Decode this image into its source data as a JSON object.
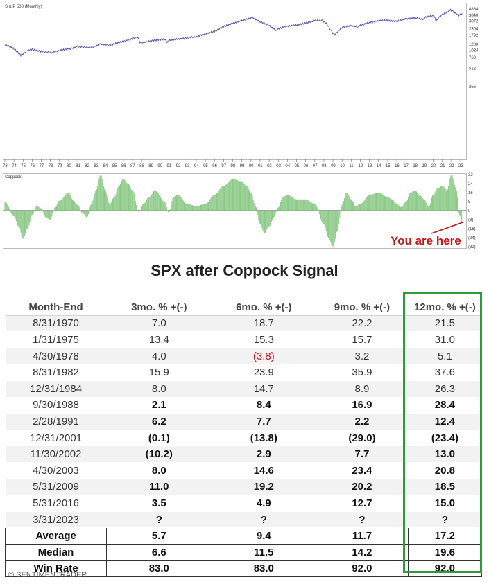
{
  "chart_data": [
    {
      "type": "line",
      "title": "S & P 500 (Monthly)",
      "scale": "log",
      "y_ticks": [
        "4864",
        "3840",
        "3072",
        "2304",
        "1792",
        "1280",
        "1024",
        "768",
        "512",
        "256"
      ],
      "y_tick_values": [
        4864,
        3840,
        3072,
        2304,
        1792,
        1280,
        1024,
        768,
        512,
        256
      ],
      "x_ticks": [
        "73",
        "74",
        "75",
        "76",
        "77",
        "78",
        "79",
        "80",
        "81",
        "82",
        "83",
        "84",
        "85",
        "86",
        "87",
        "88",
        "89",
        "90",
        "91",
        "92",
        "93",
        "94",
        "95",
        "96",
        "97",
        "98",
        "99",
        "00",
        "01",
        "02",
        "03",
        "04",
        "05",
        "06",
        "07",
        "08",
        "09",
        "10",
        "11",
        "12",
        "13",
        "14",
        "15",
        "16",
        "17",
        "18",
        "19",
        "20",
        "21",
        "22",
        "23"
      ],
      "x_range": [
        1973,
        2023.3
      ],
      "series": [
        {
          "x": [
            1973,
            1974,
            1974.75,
            1975.5,
            1976,
            1977,
            1978.2,
            1979,
            1980.2,
            1980.9,
            1982.6,
            1983.5,
            1984.5,
            1985,
            1986,
            1987.6,
            1987.8,
            1988,
            1989,
            1990.5,
            1990.8,
            1991,
            1992,
            1993,
            1994,
            1995,
            1996,
            1997,
            1998,
            1999,
            2000.2,
            2000.7,
            2001,
            2001.7,
            2002,
            2002.8,
            2003,
            2004,
            2005,
            2006,
            2007,
            2007.8,
            2008.3,
            2008.9,
            2009.2,
            2010,
            2011,
            2011.8,
            2012,
            2013,
            2014,
            2015,
            2016.1,
            2017,
            2018,
            2018.9,
            2019,
            2020.1,
            2020.3,
            2020.6,
            2021,
            2021.9,
            2022.3,
            2022.8,
            2023.2
          ],
          "y": [
            1250,
            1080,
            840,
            1010,
            1050,
            970,
            930,
            1010,
            1080,
            1170,
            1120,
            1280,
            1240,
            1300,
            1410,
            1680,
            1320,
            1350,
            1460,
            1560,
            1400,
            1470,
            1550,
            1620,
            1700,
            1900,
            2100,
            2500,
            2800,
            3100,
            3500,
            3200,
            3000,
            2750,
            2600,
            2100,
            2300,
            2550,
            2650,
            2850,
            3150,
            3150,
            2800,
            2000,
            1850,
            2450,
            2600,
            2450,
            2600,
            2900,
            3100,
            3150,
            3050,
            3350,
            3500,
            3250,
            3500,
            3800,
            3050,
            3500,
            3900,
            4700,
            4300,
            3850,
            4050
          ]
        }
      ]
    },
    {
      "type": "bar",
      "title": "Coppock",
      "y_ticks": [
        "32",
        "24",
        "16",
        "8",
        "0",
        "(8)",
        "(16)",
        "(24)",
        "(32)"
      ],
      "y_tick_values": [
        32,
        24,
        16,
        8,
        0,
        -8,
        -16,
        -24,
        -32
      ],
      "x_range": [
        1973,
        2023.3
      ],
      "series": [
        {
          "x": [
            1973,
            1974,
            1974.5,
            1975,
            1975.5,
            1976,
            1976.5,
            1977,
            1977.5,
            1978,
            1978.5,
            1979,
            1980,
            1980.5,
            1981,
            1981.5,
            1982,
            1982.5,
            1983,
            1983.5,
            1984,
            1984.5,
            1985,
            1985.5,
            1986,
            1986.5,
            1987,
            1987.7,
            1988.2,
            1988.8,
            1989.5,
            1990.5,
            1991,
            1991.5,
            1992,
            1993,
            1994,
            1995,
            1996,
            1997,
            1998,
            1999,
            1999.5,
            2000,
            2000.5,
            2001,
            2001.5,
            2002,
            2002.5,
            2003,
            2003.5,
            2004,
            2005,
            2006,
            2007,
            2008,
            2008.5,
            2009,
            2009.5,
            2010,
            2010.5,
            2011,
            2011.5,
            2012,
            2013,
            2014,
            2015,
            2015.5,
            2016,
            2016.5,
            2017,
            2017.5,
            2018,
            2018.5,
            2019,
            2019.5,
            2020,
            2020.5,
            2021,
            2021.5,
            2022,
            2022.5,
            2022.9,
            2023.2
          ],
          "y": [
            8,
            -5,
            -14,
            -25,
            -16,
            -4,
            4,
            2,
            -6,
            -8,
            3,
            9,
            16,
            9,
            5,
            -2,
            -6,
            6,
            18,
            32,
            18,
            6,
            12,
            22,
            28,
            24,
            18,
            -1,
            6,
            12,
            18,
            8,
            -2,
            12,
            14,
            6,
            4,
            6,
            14,
            22,
            28,
            26,
            22,
            16,
            4,
            -12,
            -20,
            -14,
            -6,
            3,
            12,
            14,
            10,
            10,
            6,
            -12,
            -24,
            -32,
            -18,
            6,
            16,
            10,
            4,
            6,
            14,
            16,
            12,
            10,
            6,
            3,
            8,
            16,
            18,
            14,
            10,
            4,
            14,
            20,
            22,
            18,
            32,
            20,
            -4,
            -11
          ]
        }
      ]
    },
    {
      "type": "table",
      "title": "SPX after Coppock Signal",
      "columns": [
        "Month-End",
        "3mo. % +(-)",
        "6mo. % +(-)",
        "9mo. % +(-)",
        "12mo. % +(-)"
      ],
      "rows": [
        [
          "8/31/1970",
          "7.0",
          "18.7",
          "22.2",
          "21.5"
        ],
        [
          "1/31/1975",
          "13.4",
          "15.3",
          "15.7",
          "31.0"
        ],
        [
          "4/30/1978",
          "4.0",
          "(3.8)",
          "3.2",
          "5.1"
        ],
        [
          "8/31/1982",
          "15.9",
          "23.9",
          "35.9",
          "37.6"
        ],
        [
          "12/31/1984",
          "8.0",
          "14.7",
          "8.9",
          "26.3"
        ],
        [
          "9/30/1988",
          "2.1",
          "8.4",
          "16.9",
          "28.4"
        ],
        [
          "2/28/1991",
          "6.2",
          "7.7",
          "2.2",
          "12.4"
        ],
        [
          "12/31/2001",
          "(0.1)",
          "(13.8)",
          "(29.0)",
          "(23.4)"
        ],
        [
          "11/30/2002",
          "(10.2)",
          "2.9",
          "7.7",
          "13.0"
        ],
        [
          "4/30/2003",
          "8.0",
          "14.6",
          "23.4",
          "20.8"
        ],
        [
          "5/31/2009",
          "11.0",
          "19.2",
          "20.2",
          "18.5"
        ],
        [
          "5/31/2016",
          "3.5",
          "4.9",
          "12.7",
          "15.0"
        ],
        [
          "3/31/2023",
          "?",
          "?",
          "?",
          "?"
        ]
      ],
      "summary": [
        [
          "Average",
          "5.7",
          "9.4",
          "11.7",
          "17.2"
        ],
        [
          "Median",
          "6.6",
          "11.5",
          "14.2",
          "19.6"
        ],
        [
          "Win Rate",
          "83.0",
          "83.0",
          "92.0",
          "92.0"
        ]
      ]
    }
  ],
  "annotation": "You are here",
  "copyright": "© SENTIMENTRADER",
  "colors": {
    "price_line": "#5a4fb0",
    "coppock_bar": "#7fc47a",
    "negative_text": "#c0171c",
    "highlight_box": "#2a9d3a",
    "annotation": "#c0171c"
  }
}
